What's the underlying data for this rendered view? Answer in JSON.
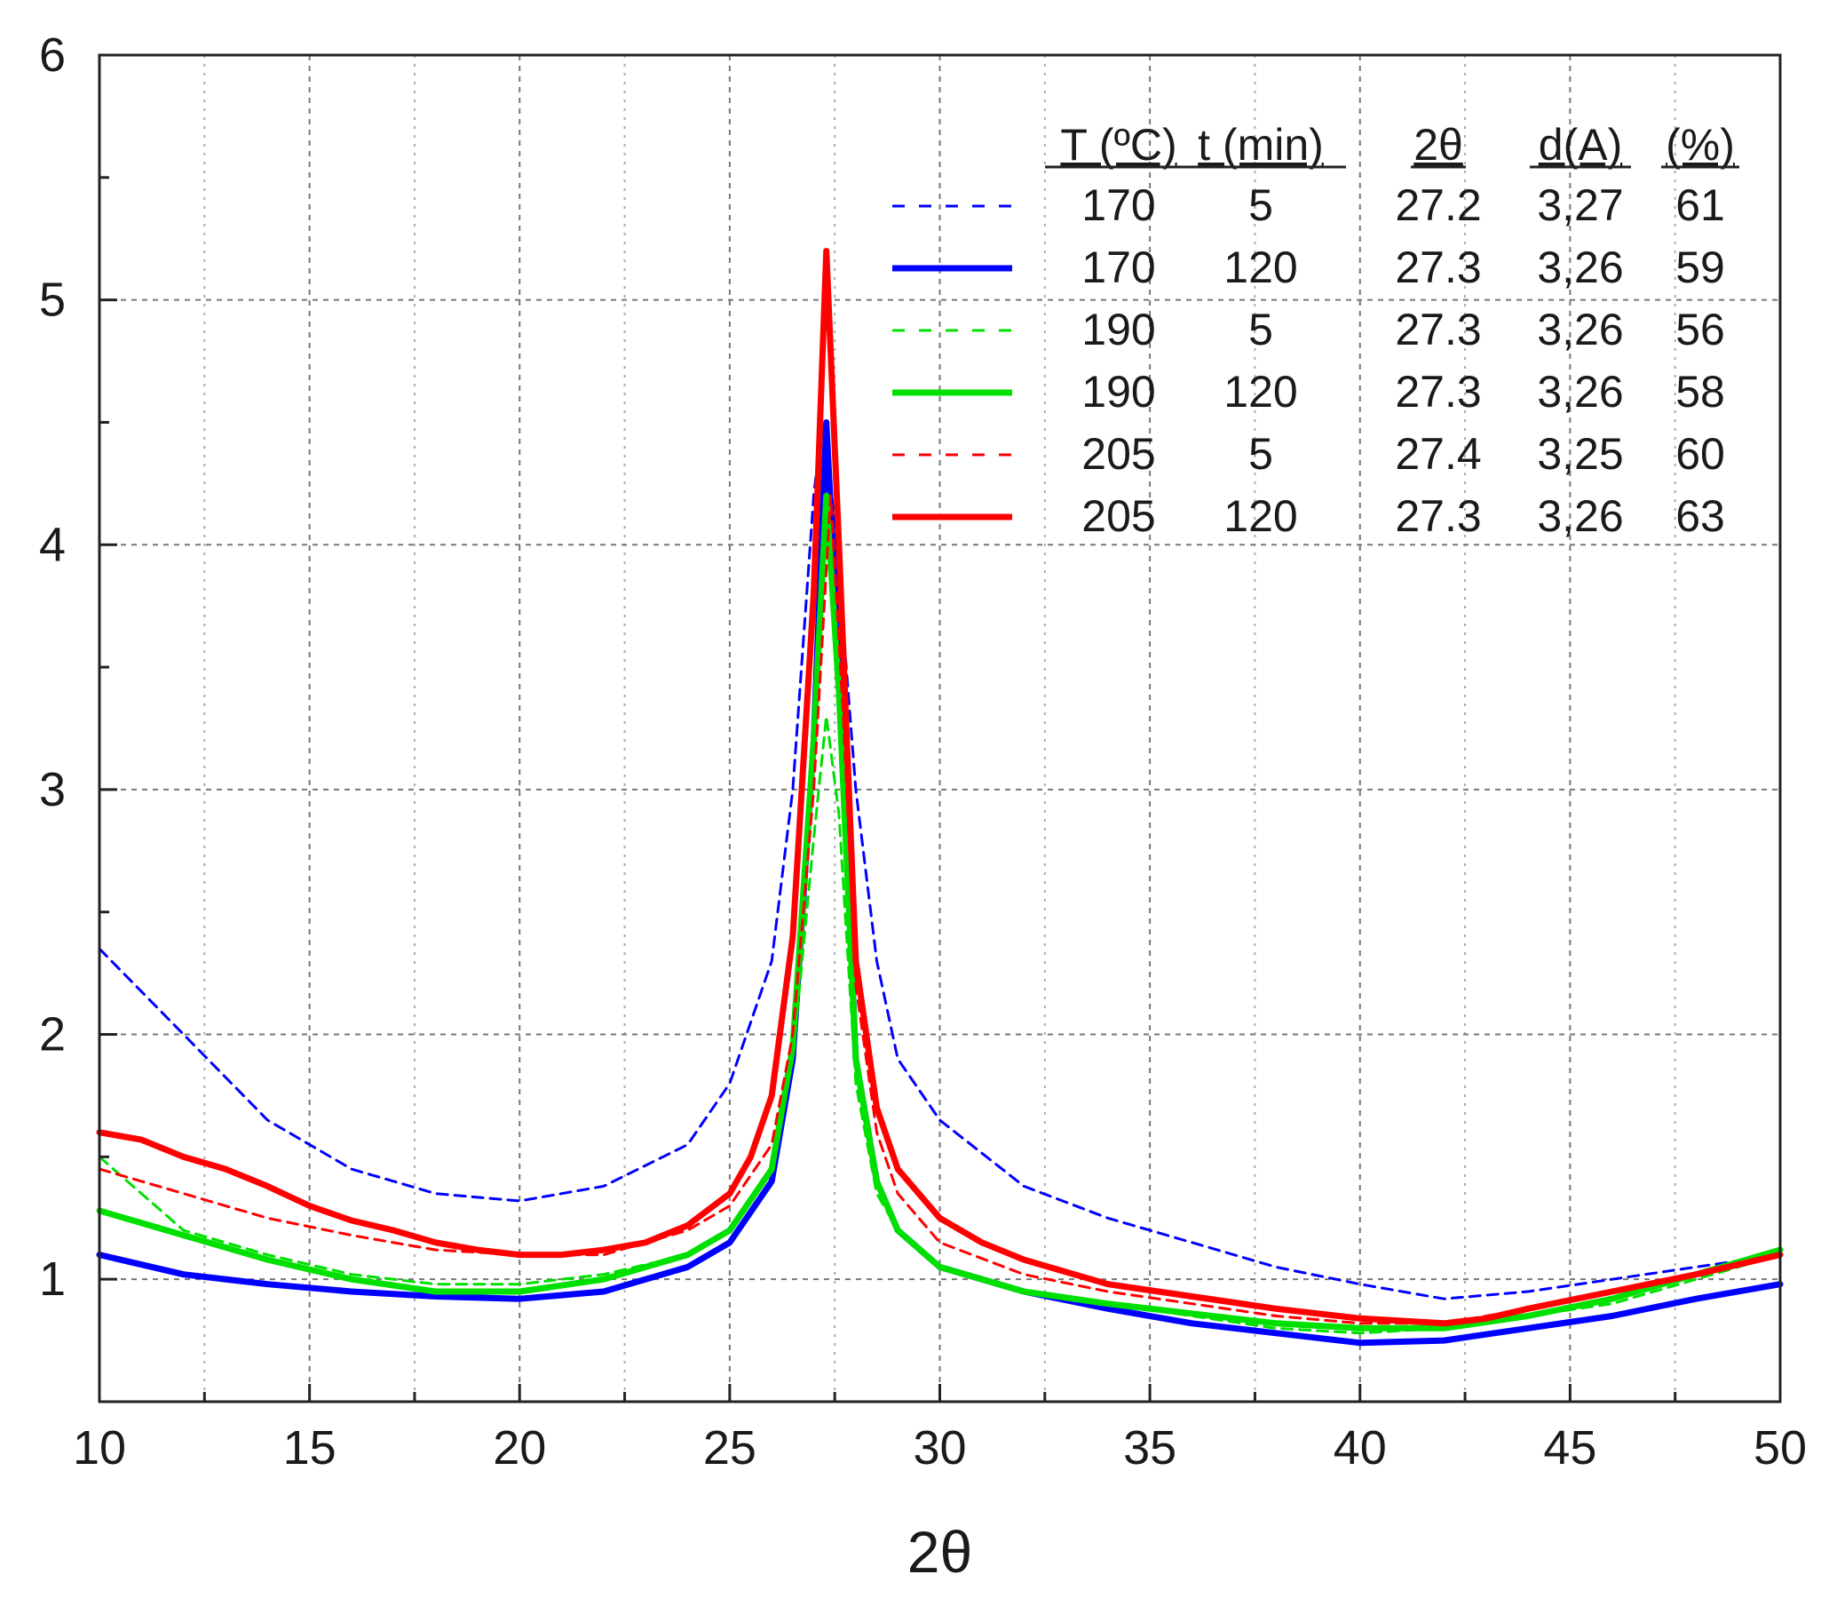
{
  "chart_data": {
    "type": "line",
    "title": "",
    "xlabel": "2θ",
    "ylabel": "",
    "xlim": [
      10,
      50
    ],
    "ylim": [
      0.5,
      6
    ],
    "x_ticks": [
      "10",
      "15",
      "20",
      "25",
      "30",
      "35",
      "40",
      "45",
      "50"
    ],
    "y_ticks": [
      "1",
      "2",
      "3",
      "4",
      "5",
      "6"
    ],
    "grid": true,
    "legend_placement": "top-right",
    "legend_headers": [
      "T (ºC)",
      "t (min)",
      "2θ",
      "d(A)",
      "(%)"
    ],
    "series": [
      {
        "color": "#0000ff",
        "style": "dashed",
        "cells": [
          "170",
          "5",
          "27.2",
          "3,27",
          "61"
        ],
        "points": [
          [
            10,
            2.35
          ],
          [
            12,
            2.0
          ],
          [
            14,
            1.65
          ],
          [
            16,
            1.45
          ],
          [
            18,
            1.35
          ],
          [
            20,
            1.32
          ],
          [
            22,
            1.38
          ],
          [
            24,
            1.55
          ],
          [
            25,
            1.8
          ],
          [
            26,
            2.3
          ],
          [
            26.5,
            3.0
          ],
          [
            27.0,
            4.2
          ],
          [
            27.2,
            4.5
          ],
          [
            27.5,
            4.1
          ],
          [
            28.0,
            3.0
          ],
          [
            28.5,
            2.3
          ],
          [
            29,
            1.9
          ],
          [
            30,
            1.65
          ],
          [
            32,
            1.38
          ],
          [
            34,
            1.25
          ],
          [
            36,
            1.15
          ],
          [
            38,
            1.05
          ],
          [
            40,
            0.98
          ],
          [
            42,
            0.92
          ],
          [
            44,
            0.95
          ],
          [
            46,
            1.0
          ],
          [
            48,
            1.05
          ],
          [
            50,
            1.1
          ]
        ]
      },
      {
        "color": "#0000ff",
        "style": "solid",
        "cells": [
          "170",
          "120",
          "27.3",
          "3,26",
          "59"
        ],
        "points": [
          [
            10,
            1.1
          ],
          [
            12,
            1.02
          ],
          [
            14,
            0.98
          ],
          [
            16,
            0.95
          ],
          [
            18,
            0.93
          ],
          [
            20,
            0.92
          ],
          [
            22,
            0.95
          ],
          [
            24,
            1.05
          ],
          [
            25,
            1.15
          ],
          [
            26,
            1.4
          ],
          [
            26.5,
            1.9
          ],
          [
            27.0,
            3.2
          ],
          [
            27.3,
            4.5
          ],
          [
            27.6,
            3.5
          ],
          [
            28.0,
            1.9
          ],
          [
            28.5,
            1.4
          ],
          [
            29,
            1.2
          ],
          [
            30,
            1.05
          ],
          [
            32,
            0.95
          ],
          [
            34,
            0.88
          ],
          [
            36,
            0.82
          ],
          [
            38,
            0.78
          ],
          [
            40,
            0.74
          ],
          [
            42,
            0.75
          ],
          [
            44,
            0.8
          ],
          [
            46,
            0.85
          ],
          [
            48,
            0.92
          ],
          [
            50,
            0.98
          ]
        ]
      },
      {
        "color": "#00e000",
        "style": "dashed",
        "cells": [
          "190",
          "5",
          "27.3",
          "3,26",
          "56"
        ],
        "points": [
          [
            10,
            1.5
          ],
          [
            12,
            1.2
          ],
          [
            14,
            1.1
          ],
          [
            16,
            1.02
          ],
          [
            18,
            0.98
          ],
          [
            20,
            0.98
          ],
          [
            22,
            1.02
          ],
          [
            24,
            1.1
          ],
          [
            25,
            1.2
          ],
          [
            26,
            1.45
          ],
          [
            26.5,
            1.9
          ],
          [
            27.0,
            2.8
          ],
          [
            27.3,
            3.3
          ],
          [
            27.6,
            2.9
          ],
          [
            28.0,
            1.8
          ],
          [
            28.5,
            1.35
          ],
          [
            29,
            1.2
          ],
          [
            30,
            1.05
          ],
          [
            32,
            0.95
          ],
          [
            34,
            0.9
          ],
          [
            36,
            0.85
          ],
          [
            38,
            0.8
          ],
          [
            40,
            0.78
          ],
          [
            42,
            0.8
          ],
          [
            44,
            0.85
          ],
          [
            46,
            0.9
          ],
          [
            48,
            1.0
          ],
          [
            50,
            1.1
          ]
        ]
      },
      {
        "color": "#00e000",
        "style": "solid",
        "cells": [
          "190",
          "120",
          "27.3",
          "3,26",
          "58"
        ],
        "points": [
          [
            10,
            1.28
          ],
          [
            12,
            1.18
          ],
          [
            14,
            1.08
          ],
          [
            16,
            1.0
          ],
          [
            18,
            0.95
          ],
          [
            20,
            0.95
          ],
          [
            22,
            1.0
          ],
          [
            24,
            1.1
          ],
          [
            25,
            1.2
          ],
          [
            26,
            1.45
          ],
          [
            26.5,
            1.95
          ],
          [
            27.0,
            3.2
          ],
          [
            27.3,
            4.2
          ],
          [
            27.6,
            3.4
          ],
          [
            28.0,
            1.9
          ],
          [
            28.5,
            1.4
          ],
          [
            29,
            1.2
          ],
          [
            30,
            1.05
          ],
          [
            32,
            0.95
          ],
          [
            34,
            0.9
          ],
          [
            36,
            0.86
          ],
          [
            38,
            0.82
          ],
          [
            40,
            0.8
          ],
          [
            42,
            0.8
          ],
          [
            44,
            0.85
          ],
          [
            46,
            0.92
          ],
          [
            48,
            1.02
          ],
          [
            50,
            1.12
          ]
        ]
      },
      {
        "color": "#ff0000",
        "style": "dashed",
        "cells": [
          "205",
          "5",
          "27.4",
          "3,25",
          "60"
        ],
        "points": [
          [
            10,
            1.45
          ],
          [
            12,
            1.35
          ],
          [
            14,
            1.25
          ],
          [
            16,
            1.18
          ],
          [
            18,
            1.12
          ],
          [
            20,
            1.1
          ],
          [
            22,
            1.1
          ],
          [
            24,
            1.2
          ],
          [
            25,
            1.3
          ],
          [
            26,
            1.55
          ],
          [
            26.5,
            2.0
          ],
          [
            27.0,
            3.0
          ],
          [
            27.4,
            4.2
          ],
          [
            27.7,
            3.3
          ],
          [
            28.0,
            2.2
          ],
          [
            28.5,
            1.6
          ],
          [
            29,
            1.35
          ],
          [
            30,
            1.15
          ],
          [
            32,
            1.02
          ],
          [
            34,
            0.95
          ],
          [
            36,
            0.9
          ],
          [
            38,
            0.85
          ],
          [
            40,
            0.82
          ],
          [
            42,
            0.82
          ],
          [
            44,
            0.88
          ],
          [
            46,
            0.95
          ],
          [
            48,
            1.02
          ],
          [
            50,
            1.1
          ]
        ]
      },
      {
        "color": "#ff0000",
        "style": "solid",
        "cells": [
          "205",
          "120",
          "27.3",
          "3,26",
          "63"
        ],
        "points": [
          [
            10,
            1.6
          ],
          [
            11,
            1.57
          ],
          [
            12,
            1.5
          ],
          [
            13,
            1.45
          ],
          [
            14,
            1.38
          ],
          [
            15,
            1.3
          ],
          [
            16,
            1.24
          ],
          [
            17,
            1.2
          ],
          [
            18,
            1.15
          ],
          [
            19,
            1.12
          ],
          [
            20,
            1.1
          ],
          [
            21,
            1.1
          ],
          [
            22,
            1.12
          ],
          [
            23,
            1.15
          ],
          [
            24,
            1.22
          ],
          [
            25,
            1.35
          ],
          [
            25.5,
            1.5
          ],
          [
            26,
            1.75
          ],
          [
            26.5,
            2.4
          ],
          [
            27.0,
            3.8
          ],
          [
            27.3,
            5.2
          ],
          [
            27.6,
            4.0
          ],
          [
            28.0,
            2.3
          ],
          [
            28.5,
            1.7
          ],
          [
            29,
            1.45
          ],
          [
            30,
            1.25
          ],
          [
            31,
            1.15
          ],
          [
            32,
            1.08
          ],
          [
            34,
            0.98
          ],
          [
            36,
            0.93
          ],
          [
            38,
            0.88
          ],
          [
            40,
            0.84
          ],
          [
            42,
            0.82
          ],
          [
            43,
            0.84
          ],
          [
            44,
            0.88
          ],
          [
            46,
            0.95
          ],
          [
            48,
            1.02
          ],
          [
            50,
            1.1
          ]
        ]
      }
    ]
  }
}
